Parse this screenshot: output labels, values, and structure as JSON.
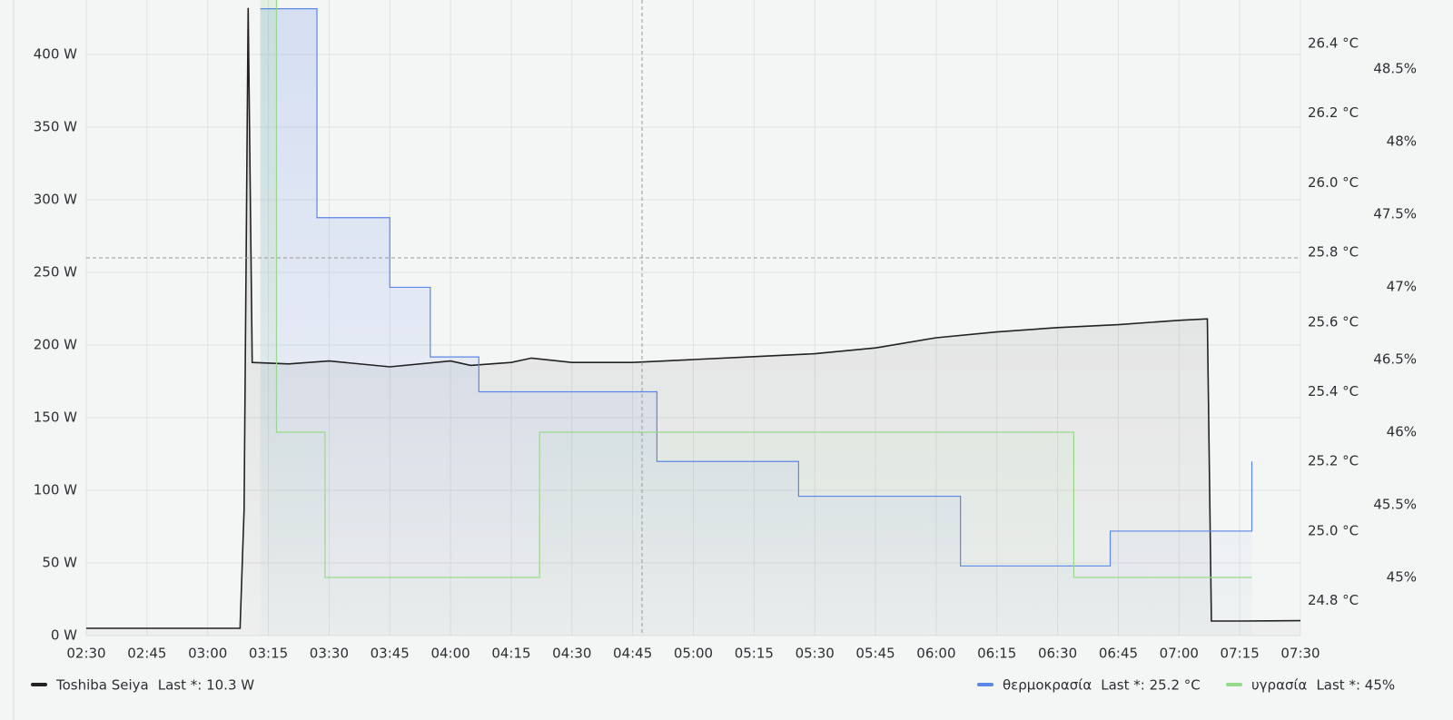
{
  "chart_data": {
    "type": "line",
    "xlim": [
      "02:30",
      "07:30"
    ],
    "xticks": [
      "02:30",
      "02:45",
      "03:00",
      "03:15",
      "03:30",
      "03:45",
      "04:00",
      "04:15",
      "04:30",
      "04:45",
      "05:00",
      "05:15",
      "05:30",
      "05:45",
      "06:00",
      "06:15",
      "06:30",
      "06:45",
      "07:00",
      "07:15",
      "07:30"
    ],
    "ylim": [
      0,
      437.5
    ],
    "yticks": [
      {
        "value": 0,
        "label": "0 W"
      },
      {
        "value": 50,
        "label": "50 W"
      },
      {
        "value": 100,
        "label": "100 W"
      },
      {
        "value": 150,
        "label": "150 W"
      },
      {
        "value": 200,
        "label": "200 W"
      },
      {
        "value": 250,
        "label": "250 W"
      },
      {
        "value": 300,
        "label": "300 W"
      },
      {
        "value": 350,
        "label": "350 W"
      },
      {
        "value": 400,
        "label": "400 W"
      }
    ],
    "y2lim": [
      24.7,
      26.525
    ],
    "y2ticks": [
      {
        "value": 24.8,
        "label": "24.8 °C"
      },
      {
        "value": 25.0,
        "label": "25.0 °C"
      },
      {
        "value": 25.2,
        "label": "25.2 °C"
      },
      {
        "value": 25.4,
        "label": "25.4 °C"
      },
      {
        "value": 25.6,
        "label": "25.6 °C"
      },
      {
        "value": 25.8,
        "label": "25.8 °C"
      },
      {
        "value": 26.0,
        "label": "26.0 °C"
      },
      {
        "value": 26.2,
        "label": "26.2 °C"
      },
      {
        "value": 26.4,
        "label": "26.4 °C"
      }
    ],
    "y3lim": [
      44.6,
      48.975
    ],
    "y3ticks": [
      {
        "value": 45,
        "label": "45%"
      },
      {
        "value": 45.5,
        "label": "45.5%"
      },
      {
        "value": 46,
        "label": "46%"
      },
      {
        "value": 46.5,
        "label": "46.5%"
      },
      {
        "value": 47,
        "label": "47%"
      },
      {
        "value": 47.5,
        "label": "47.5%"
      },
      {
        "value": 48,
        "label": "48%"
      },
      {
        "value": 48.5,
        "label": "48.5%"
      }
    ],
    "grid": true,
    "series": [
      {
        "name": "Toshiba Seiya",
        "last_label": "Last *: 10.3 W",
        "color": "#222222",
        "axis": "y",
        "step": false,
        "x": [
          "02:30",
          "03:08",
          "03:09",
          "03:10",
          "03:11",
          "03:20",
          "03:30",
          "03:45",
          "04:00",
          "04:05",
          "04:15",
          "04:20",
          "04:30",
          "04:45",
          "05:00",
          "05:15",
          "05:30",
          "05:45",
          "06:00",
          "06:15",
          "06:30",
          "06:45",
          "07:00",
          "07:07",
          "07:08",
          "07:15",
          "07:30"
        ],
        "values": [
          5,
          5,
          87,
          432,
          188,
          187,
          189,
          185,
          189,
          186,
          188,
          191,
          188,
          188,
          190,
          192,
          194,
          198,
          205,
          209,
          212,
          214,
          217,
          218,
          10,
          10,
          10.3
        ]
      },
      {
        "name": "θερμοκρασία",
        "last_label": "Last *: 25.2 °C",
        "color": "#5b87e8",
        "axis": "y2",
        "step": true,
        "x": [
          "03:13",
          "03:27",
          "03:45",
          "03:55",
          "04:07",
          "04:51",
          "05:26",
          "06:06",
          "06:43",
          "07:18"
        ],
        "values": [
          26.5,
          25.9,
          25.7,
          25.5,
          25.4,
          25.2,
          25.1,
          24.9,
          25.0,
          25.2
        ]
      },
      {
        "name": "υγρασία",
        "last_label": "Last *: 45%",
        "color": "#96d98d",
        "axis": "y3",
        "step": true,
        "x": [
          "03:13",
          "03:17",
          "03:29",
          "04:22",
          "06:34",
          "07:18"
        ],
        "values": [
          49,
          46,
          45,
          46,
          45,
          45
        ]
      }
    ]
  }
}
